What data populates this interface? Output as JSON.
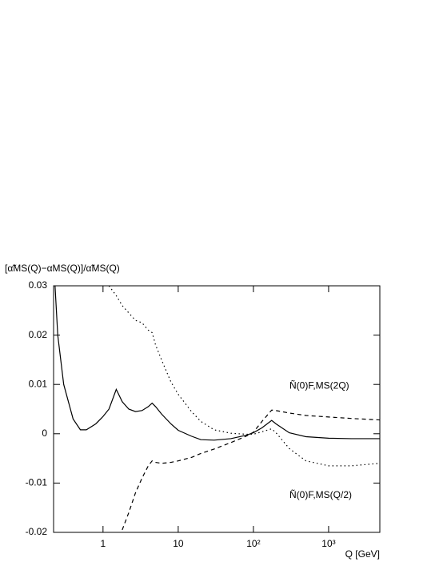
{
  "chart_data": {
    "type": "line",
    "y_label": "[α̃MS(Q)−αMS(Q)]/α̃MS(Q)",
    "x_label": "Q [GeV]",
    "log_x": true,
    "xlim": [
      0.22,
      4800
    ],
    "ylim": [
      -0.02,
      0.03
    ],
    "xticks": [
      1,
      10,
      {
        "value": 100,
        "label": "10²"
      },
      {
        "value": 1000,
        "label": "10³"
      }
    ],
    "yticks": [
      -0.02,
      -0.01,
      0,
      0.01,
      0.02,
      0.03
    ],
    "x": [
      0.23,
      0.25,
      0.3,
      0.4,
      0.5,
      0.6,
      0.8,
      1,
      1.2,
      1.5,
      1.8,
      2.2,
      2.7,
      3.3,
      4,
      4.5,
      5,
      6,
      8,
      10,
      15,
      20,
      30,
      50,
      80,
      100,
      130,
      175,
      200,
      300,
      500,
      1000,
      2000,
      4800
    ],
    "series": [
      {
        "color": "#000000",
        "dash": "none",
        "values": [
          0.03,
          0.02,
          0.01,
          0.003,
          0.0008,
          0.0008,
          0.002,
          0.0035,
          0.005,
          0.009,
          0.0065,
          0.005,
          0.0045,
          0.0047,
          0.0055,
          0.0062,
          0.0055,
          0.004,
          0.002,
          0.0007,
          -0.0005,
          -0.0012,
          -0.0013,
          -0.001,
          -0.0003,
          0.0002,
          0.0012,
          0.0027,
          0.002,
          0.0002,
          -0.0006,
          -0.0009,
          -0.001,
          -0.001
        ]
      },
      {
        "name": "Ñ(0)F,MS(Q/2)",
        "color": "#000000",
        "dash": "1.5 3.5",
        "values": [
          null,
          null,
          null,
          null,
          null,
          null,
          null,
          null,
          0.03,
          0.028,
          0.026,
          0.0245,
          0.023,
          0.0225,
          0.021,
          0.0205,
          0.018,
          0.015,
          0.0105,
          0.008,
          0.0045,
          0.0025,
          0.0008,
          0.0001,
          -0.0001,
          -0.0001,
          0.0004,
          0.001,
          0.0002,
          -0.003,
          -0.0055,
          -0.0065,
          -0.0065,
          -0.006
        ]
      },
      {
        "name": "Ñ(0)F,MS(2Q)",
        "color": "#000000",
        "dash": "5 4",
        "values": [
          null,
          null,
          null,
          null,
          null,
          null,
          null,
          null,
          null,
          null,
          -0.0195,
          -0.016,
          -0.012,
          -0.009,
          -0.0065,
          -0.0055,
          -0.0058,
          -0.006,
          -0.0058,
          -0.0055,
          -0.0048,
          -0.004,
          -0.0031,
          -0.0018,
          -0.0005,
          0.0003,
          0.0025,
          0.0048,
          0.0047,
          0.0042,
          0.0037,
          0.0034,
          0.0031,
          0.0028
        ]
      }
    ]
  }
}
